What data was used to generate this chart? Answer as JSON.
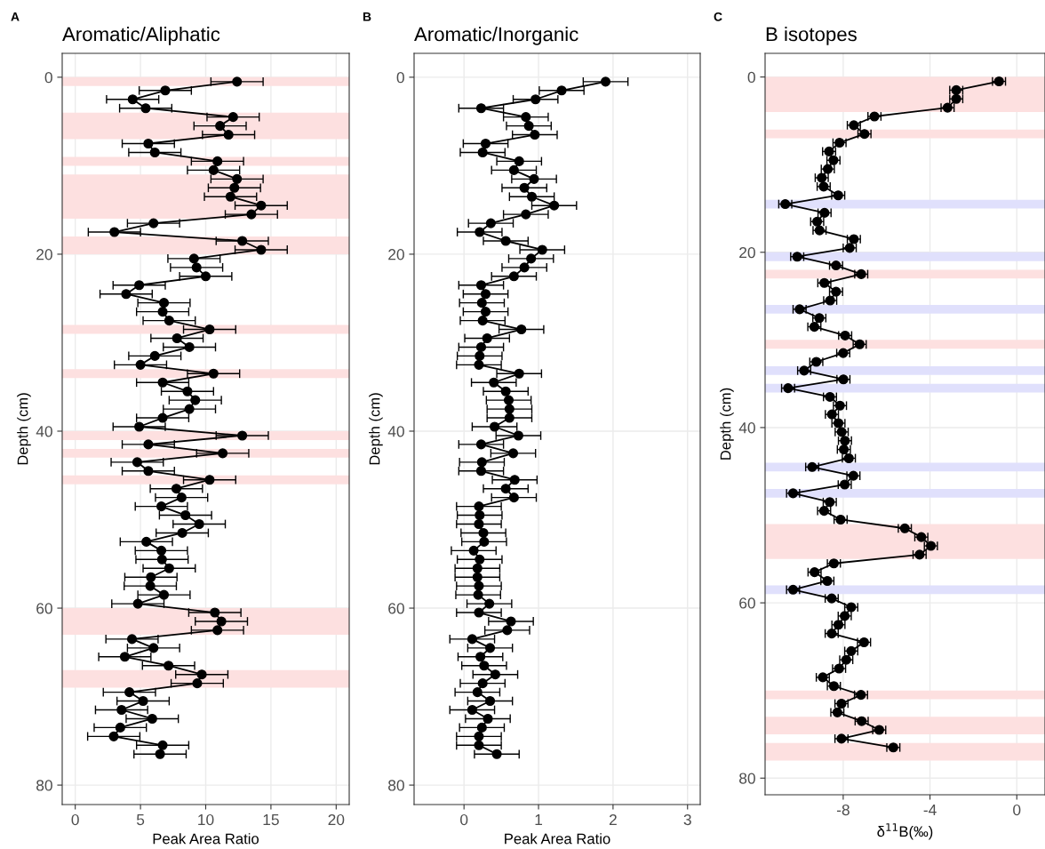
{
  "chart_data": [
    {
      "type": "line",
      "orientation": "horizontal",
      "title": "Aromatic/Aliphatic",
      "xlabel": "Peak Area Ratio",
      "ylabel": "Depth (cm)",
      "annotations": [
        "A"
      ],
      "xlim": [
        -1,
        21
      ],
      "xticks": [
        0,
        5,
        10,
        15,
        20
      ],
      "ylim": [
        82.2,
        -2.7
      ],
      "yticks": [
        0,
        20,
        40,
        60,
        80
      ],
      "grid": true,
      "marker": "circle",
      "line_style": "solid",
      "series": [
        {
          "color": "#000000",
          "x": [
            0.5,
            1.5,
            2.5,
            3.5,
            4.5,
            5.5,
            6.5,
            7.5,
            8.5,
            9.5,
            10.5,
            11.5,
            12.5,
            13.5,
            14.5,
            15.5,
            16.5,
            17.5,
            18.5,
            19.5,
            20.5,
            21.5,
            22.5,
            23.5,
            24.5,
            25.5,
            26.5,
            27.5,
            28.5,
            29.5,
            30.5,
            31.5,
            32.5,
            33.5,
            34.5,
            35.5,
            36.5,
            37.5,
            38.5,
            39.5,
            40.5,
            41.5,
            42.5,
            43.5,
            44.5,
            45.5,
            46.5,
            47.5,
            48.5,
            49.5,
            50.5,
            51.5,
            52.5,
            53.5,
            54.5,
            55.5,
            56.5,
            57.5,
            58.5,
            59.5,
            60.5,
            61.5,
            62.5,
            63.5,
            64.5,
            65.5,
            66.5,
            67.5,
            68.5,
            69.5,
            70.5,
            71.5,
            72.5,
            73.5,
            74.5,
            75.5,
            76.5
          ],
          "values": [
            12.4,
            6.9,
            4.4,
            5.4,
            12.1,
            11.1,
            11.75,
            5.6,
            6.1,
            10.9,
            10.6,
            12.4,
            12.2,
            11.9,
            14.25,
            13.5,
            6.0,
            3.0,
            12.8,
            14.25,
            9.1,
            9.3,
            10.0,
            4.9,
            3.9,
            6.8,
            6.7,
            7.2,
            10.3,
            7.8,
            8.75,
            6.1,
            5.0,
            10.6,
            6.7,
            8.6,
            9.2,
            8.75,
            6.7,
            4.9,
            12.8,
            5.6,
            11.3,
            4.75,
            5.6,
            10.3,
            7.75,
            8.15,
            6.6,
            8.45,
            9.5,
            8.2,
            5.45,
            6.6,
            6.65,
            7.2,
            5.8,
            5.75,
            6.8,
            4.8,
            10.7,
            11.2,
            10.9,
            4.35,
            6.0,
            3.8,
            7.15,
            9.7,
            9.35,
            4.15,
            5.2,
            3.55,
            5.9,
            3.45,
            2.95,
            6.7,
            6.5
          ],
          "errors": [
            2,
            2,
            2,
            2,
            2,
            2,
            2,
            2,
            2,
            2,
            2,
            2,
            2,
            2,
            2,
            2,
            2,
            2,
            2,
            2,
            2,
            2,
            2,
            2,
            2,
            2,
            2,
            2,
            2,
            2,
            2,
            2,
            2,
            2,
            2,
            2,
            2,
            2,
            2,
            2,
            2,
            2,
            2,
            2,
            2,
            2,
            2,
            2,
            2,
            2,
            2,
            2,
            2,
            2,
            2,
            2,
            2,
            2,
            2,
            2,
            2,
            2,
            2,
            2,
            2,
            2,
            2,
            2,
            2,
            2,
            2,
            2,
            2,
            2,
            2,
            2,
            2
          ]
        }
      ],
      "bands": [
        {
          "axis": "y",
          "from": 0,
          "to": 1,
          "color": "#fde0e0"
        },
        {
          "axis": "y",
          "from": 4,
          "to": 7,
          "color": "#fde0e0"
        },
        {
          "axis": "y",
          "from": 9,
          "to": 10,
          "color": "#fde0e0"
        },
        {
          "axis": "y",
          "from": 11,
          "to": 16,
          "color": "#fde0e0"
        },
        {
          "axis": "y",
          "from": 18,
          "to": 20,
          "color": "#fde0e0"
        },
        {
          "axis": "y",
          "from": 28,
          "to": 29,
          "color": "#fde0e0"
        },
        {
          "axis": "y",
          "from": 33,
          "to": 34,
          "color": "#fde0e0"
        },
        {
          "axis": "y",
          "from": 40,
          "to": 41,
          "color": "#fde0e0"
        },
        {
          "axis": "y",
          "from": 42,
          "to": 43,
          "color": "#fde0e0"
        },
        {
          "axis": "y",
          "from": 45,
          "to": 46,
          "color": "#fde0e0"
        },
        {
          "axis": "y",
          "from": 60,
          "to": 63,
          "color": "#fde0e0"
        },
        {
          "axis": "y",
          "from": 67,
          "to": 69,
          "color": "#fde0e0"
        }
      ]
    },
    {
      "type": "line",
      "orientation": "horizontal",
      "title": "Aromatic/Inorganic",
      "xlabel": "Peak Area Ratio",
      "ylabel": "Depth (cm)",
      "annotations": [
        "B"
      ],
      "xlim": [
        -0.67,
        3.17
      ],
      "xticks": [
        0,
        1,
        2,
        3
      ],
      "ylim": [
        82.2,
        -2.7
      ],
      "yticks": [
        0,
        20,
        40,
        60,
        80
      ],
      "grid": true,
      "marker": "circle",
      "line_style": "solid",
      "series": [
        {
          "color": "#000000",
          "x": [
            0.5,
            1.5,
            2.5,
            3.5,
            4.5,
            5.5,
            6.5,
            7.5,
            8.5,
            9.5,
            10.5,
            11.5,
            12.5,
            13.5,
            14.5,
            15.5,
            16.5,
            17.5,
            18.5,
            19.5,
            20.5,
            21.5,
            22.5,
            23.5,
            24.5,
            25.5,
            26.5,
            27.5,
            28.5,
            29.5,
            30.5,
            31.5,
            32.5,
            33.5,
            34.5,
            35.5,
            36.5,
            37.5,
            38.5,
            39.5,
            40.5,
            41.5,
            42.5,
            43.5,
            44.5,
            45.5,
            46.5,
            47.5,
            48.5,
            49.5,
            50.5,
            51.5,
            52.5,
            53.5,
            54.5,
            55.5,
            56.5,
            57.5,
            58.5,
            59.5,
            60.5,
            61.5,
            62.5,
            63.5,
            64.5,
            65.5,
            66.5,
            67.5,
            68.5,
            69.5,
            70.5,
            71.5,
            72.5,
            73.5,
            74.5,
            75.5,
            76.5
          ],
          "values": [
            1.9,
            1.31,
            0.96,
            0.23,
            0.83,
            0.87,
            0.95,
            0.29,
            0.25,
            0.74,
            0.67,
            0.94,
            0.81,
            0.91,
            1.21,
            0.83,
            0.36,
            0.21,
            0.56,
            1.05,
            0.9,
            0.81,
            0.67,
            0.23,
            0.29,
            0.24,
            0.29,
            0.25,
            0.77,
            0.31,
            0.23,
            0.21,
            0.2,
            0.74,
            0.4,
            0.56,
            0.6,
            0.61,
            0.61,
            0.41,
            0.73,
            0.23,
            0.66,
            0.24,
            0.23,
            0.68,
            0.56,
            0.67,
            0.2,
            0.21,
            0.2,
            0.26,
            0.27,
            0.13,
            0.21,
            0.18,
            0.18,
            0.2,
            0.19,
            0.34,
            0.2,
            0.63,
            0.58,
            0.11,
            0.35,
            0.22,
            0.27,
            0.42,
            0.25,
            0.18,
            0.35,
            0.11,
            0.32,
            0.24,
            0.2,
            0.2,
            0.44
          ],
          "errors": [
            0.3,
            0.3,
            0.3,
            0.3,
            0.3,
            0.3,
            0.3,
            0.3,
            0.3,
            0.3,
            0.3,
            0.3,
            0.3,
            0.3,
            0.3,
            0.3,
            0.3,
            0.3,
            0.3,
            0.3,
            0.3,
            0.3,
            0.3,
            0.3,
            0.3,
            0.3,
            0.3,
            0.3,
            0.3,
            0.3,
            0.3,
            0.3,
            0.3,
            0.3,
            0.3,
            0.3,
            0.3,
            0.3,
            0.3,
            0.3,
            0.3,
            0.3,
            0.3,
            0.3,
            0.3,
            0.3,
            0.3,
            0.3,
            0.3,
            0.3,
            0.3,
            0.3,
            0.3,
            0.3,
            0.3,
            0.3,
            0.3,
            0.3,
            0.3,
            0.3,
            0.3,
            0.3,
            0.3,
            0.3,
            0.3,
            0.3,
            0.3,
            0.3,
            0.3,
            0.3,
            0.3,
            0.3,
            0.3,
            0.3,
            0.3,
            0.3,
            0.3
          ]
        }
      ]
    },
    {
      "type": "line",
      "orientation": "horizontal",
      "title": "B isotopes",
      "xlabel": "δ$^{11}$B(‰)",
      "ylabel": "Depth (cm)",
      "annotations": [
        "C"
      ],
      "xlim": [
        -11.6,
        1.3
      ],
      "xticks": [
        {
          "value": -8,
          "label": "-8"
        },
        {
          "value": -4,
          "label": "-4"
        },
        0
      ],
      "ylim": [
        81.9,
        -2.7
      ],
      "yticks": [
        0,
        20,
        40,
        60,
        80
      ],
      "grid": true,
      "marker": "circle",
      "line_style": "solid",
      "series": [
        {
          "color": "#000000",
          "x": [
            0.5,
            1.5,
            2.5,
            3.5,
            4.5,
            5.5,
            6.5,
            7.5,
            8.5,
            9.5,
            10.5,
            11.5,
            12.5,
            13.5,
            14.5,
            15.5,
            16.5,
            17.5,
            18.5,
            19.5,
            20.5,
            21.5,
            22.5,
            23.5,
            24.5,
            25.5,
            26.5,
            27.5,
            28.5,
            29.5,
            30.5,
            31.5,
            32.5,
            33.5,
            34.5,
            35.5,
            36.5,
            37.5,
            38.5,
            39.5,
            40.5,
            41.5,
            42.5,
            43.5,
            44.5,
            45.5,
            46.5,
            47.5,
            48.5,
            49.5,
            50.5,
            51.5,
            52.5,
            53.5,
            54.5,
            55.5,
            56.5,
            57.5,
            58.5,
            59.5,
            60.5,
            61.5,
            62.5,
            63.5,
            64.5,
            65.5,
            66.5,
            67.5,
            68.5,
            69.5,
            70.5,
            71.5,
            72.5,
            73.5,
            74.5,
            75.5,
            76.5
          ],
          "values": [
            -0.82,
            -2.79,
            -2.79,
            -3.19,
            -6.56,
            -7.51,
            -7.02,
            -8.17,
            -8.65,
            -8.45,
            -8.71,
            -8.99,
            -8.9,
            -8.23,
            -10.67,
            -8.86,
            -9.2,
            -9.09,
            -7.51,
            -7.7,
            -10.12,
            -8.33,
            -7.17,
            -8.87,
            -8.33,
            -8.6,
            -10.01,
            -9.1,
            -9.33,
            -7.91,
            -7.24,
            -8.0,
            -9.24,
            -9.8,
            -7.99,
            -10.54,
            -8.61,
            -8.15,
            -8.52,
            -8.22,
            -8.07,
            -7.92,
            -7.97,
            -7.74,
            -9.43,
            -7.53,
            -7.93,
            -10.31,
            -8.62,
            -8.88,
            -8.12,
            -5.16,
            -4.4,
            -3.96,
            -4.48,
            -8.43,
            -9.32,
            -8.73,
            -10.31,
            -8.53,
            -7.63,
            -7.93,
            -8.22,
            -8.53,
            -7.04,
            -7.63,
            -7.86,
            -8.19,
            -8.94,
            -8.43,
            -7.18,
            -8.08,
            -8.27,
            -7.15,
            -6.34,
            -8.08,
            -5.69
          ],
          "errors": [
            0.3,
            0.3,
            0.3,
            0.3,
            0.3,
            0.3,
            0.3,
            0.3,
            0.3,
            0.3,
            0.3,
            0.3,
            0.3,
            0.3,
            0.3,
            0.3,
            0.3,
            0.3,
            0.3,
            0.3,
            0.3,
            0.3,
            0.3,
            0.3,
            0.3,
            0.3,
            0.3,
            0.3,
            0.3,
            0.3,
            0.3,
            0.3,
            0.3,
            0.3,
            0.3,
            0.3,
            0.3,
            0.3,
            0.3,
            0.3,
            0.3,
            0.3,
            0.3,
            0.3,
            0.3,
            0.3,
            0.3,
            0.3,
            0.3,
            0.3,
            0.3,
            0.3,
            0.3,
            0.3,
            0.3,
            0.3,
            0.3,
            0.3,
            0.3,
            0.3,
            0.3,
            0.3,
            0.3,
            0.3,
            0.3,
            0.3,
            0.3,
            0.3,
            0.3,
            0.3,
            0.3,
            0.3,
            0.3,
            0.3,
            0.3,
            0.3,
            0.3
          ]
        }
      ],
      "bands": [
        {
          "axis": "y",
          "from": 0,
          "to": 4,
          "color": "#fde0e0"
        },
        {
          "axis": "y",
          "from": 6,
          "to": 7,
          "color": "#fde0e0"
        },
        {
          "axis": "y",
          "from": 14,
          "to": 15,
          "color": "#e0e0fc"
        },
        {
          "axis": "y",
          "from": 20,
          "to": 21,
          "color": "#e0e0fc"
        },
        {
          "axis": "y",
          "from": 22,
          "to": 23,
          "color": "#fde0e0"
        },
        {
          "axis": "y",
          "from": 26,
          "to": 27,
          "color": "#e0e0fc"
        },
        {
          "axis": "y",
          "from": 30,
          "to": 31,
          "color": "#fde0e0"
        },
        {
          "axis": "y",
          "from": 33,
          "to": 34,
          "color": "#e0e0fc"
        },
        {
          "axis": "y",
          "from": 35,
          "to": 36,
          "color": "#e0e0fc"
        },
        {
          "axis": "y",
          "from": 44,
          "to": 45,
          "color": "#e0e0fc"
        },
        {
          "axis": "y",
          "from": 47,
          "to": 48,
          "color": "#e0e0fc"
        },
        {
          "axis": "y",
          "from": 51,
          "to": 55,
          "color": "#fde0e0"
        },
        {
          "axis": "y",
          "from": 58,
          "to": 59,
          "color": "#e0e0fc"
        },
        {
          "axis": "y",
          "from": 70,
          "to": 71,
          "color": "#fde0e0"
        },
        {
          "axis": "y",
          "from": 73,
          "to": 75,
          "color": "#fde0e0"
        },
        {
          "axis": "y",
          "from": 76,
          "to": 78,
          "color": "#fde0e0"
        }
      ]
    }
  ]
}
